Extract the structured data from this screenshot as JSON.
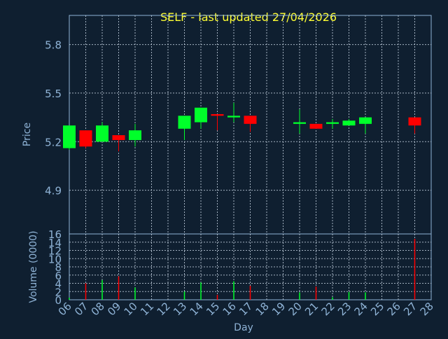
{
  "chart_data": [
    {
      "type": "candlestick",
      "title": "SELF - last updated 27/04/2026",
      "xlabel": "",
      "ylabel": "Price",
      "ylim": [
        4.63,
        5.98
      ],
      "yticks": [
        "4.9",
        "5.2",
        "5.5",
        "5.8"
      ],
      "grid": true,
      "candles": [
        {
          "day": "06",
          "open": 5.16,
          "close": 5.3,
          "high": 5.3,
          "low": 5.15
        },
        {
          "day": "07",
          "open": 5.27,
          "close": 5.17,
          "high": 5.27,
          "low": 5.16
        },
        {
          "day": "08",
          "open": 5.2,
          "close": 5.3,
          "high": 5.32,
          "low": 5.2
        },
        {
          "day": "09",
          "open": 5.24,
          "close": 5.21,
          "high": 5.24,
          "low": 5.14
        },
        {
          "day": "10",
          "open": 5.21,
          "close": 5.27,
          "high": 5.31,
          "low": 5.17
        },
        {
          "day": "13",
          "open": 5.28,
          "close": 5.36,
          "high": 5.36,
          "low": 5.21
        },
        {
          "day": "14",
          "open": 5.32,
          "close": 5.41,
          "high": 5.41,
          "low": 5.28
        },
        {
          "day": "15",
          "open": 5.37,
          "close": 5.36,
          "high": 5.37,
          "low": 5.27
        },
        {
          "day": "16",
          "open": 5.35,
          "close": 5.36,
          "high": 5.44,
          "low": 5.32
        },
        {
          "day": "17",
          "open": 5.36,
          "close": 5.31,
          "high": 5.36,
          "low": 5.26
        },
        {
          "day": "20",
          "open": 5.31,
          "close": 5.32,
          "high": 5.4,
          "low": 5.25
        },
        {
          "day": "21",
          "open": 5.31,
          "close": 5.28,
          "high": 5.31,
          "low": 5.28
        },
        {
          "day": "22",
          "open": 5.31,
          "close": 5.32,
          "high": 5.34,
          "low": 5.28
        },
        {
          "day": "23",
          "open": 5.3,
          "close": 5.33,
          "high": 5.34,
          "low": 5.3
        },
        {
          "day": "24",
          "open": 5.31,
          "close": 5.35,
          "high": 5.35,
          "low": 5.25
        },
        {
          "day": "27",
          "open": 5.35,
          "close": 5.3,
          "high": 5.35,
          "low": 5.25
        }
      ]
    },
    {
      "type": "bar",
      "xlabel": "Day",
      "ylabel": "Volume (0000)",
      "ylim": [
        0,
        16
      ],
      "yticks": [
        "0",
        "2",
        "4",
        "6",
        "8",
        "10",
        "12",
        "14",
        "16"
      ],
      "grid": true,
      "categories": [
        "06",
        "07",
        "08",
        "09",
        "10",
        "11",
        "12",
        "13",
        "14",
        "15",
        "16",
        "17",
        "18",
        "19",
        "20",
        "21",
        "22",
        "23",
        "24",
        "25",
        "26",
        "27",
        "28"
      ],
      "bars": [
        {
          "day": "06",
          "value": 0.5,
          "direction": "up"
        },
        {
          "day": "07",
          "value": 4.0,
          "direction": "down"
        },
        {
          "day": "08",
          "value": 4.8,
          "direction": "up"
        },
        {
          "day": "09",
          "value": 5.7,
          "direction": "down"
        },
        {
          "day": "10",
          "value": 3.0,
          "direction": "up"
        },
        {
          "day": "13",
          "value": 2.0,
          "direction": "up"
        },
        {
          "day": "14",
          "value": 4.2,
          "direction": "up"
        },
        {
          "day": "15",
          "value": 1.2,
          "direction": "down"
        },
        {
          "day": "16",
          "value": 4.5,
          "direction": "up"
        },
        {
          "day": "17",
          "value": 3.4,
          "direction": "down"
        },
        {
          "day": "20",
          "value": 1.8,
          "direction": "up"
        },
        {
          "day": "21",
          "value": 3.2,
          "direction": "down"
        },
        {
          "day": "22",
          "value": 0.6,
          "direction": "up"
        },
        {
          "day": "23",
          "value": 1.9,
          "direction": "up"
        },
        {
          "day": "24",
          "value": 1.8,
          "direction": "up"
        },
        {
          "day": "27",
          "value": 14.8,
          "direction": "down"
        }
      ]
    }
  ],
  "colors": {
    "background": "#0f1f30",
    "plot_border": "#8fb3d6",
    "grid": "#c9d6e4",
    "axis_text": "#8fb3d6",
    "title": "#ffff33",
    "up": "#00ff2a",
    "down": "#ff0000"
  }
}
